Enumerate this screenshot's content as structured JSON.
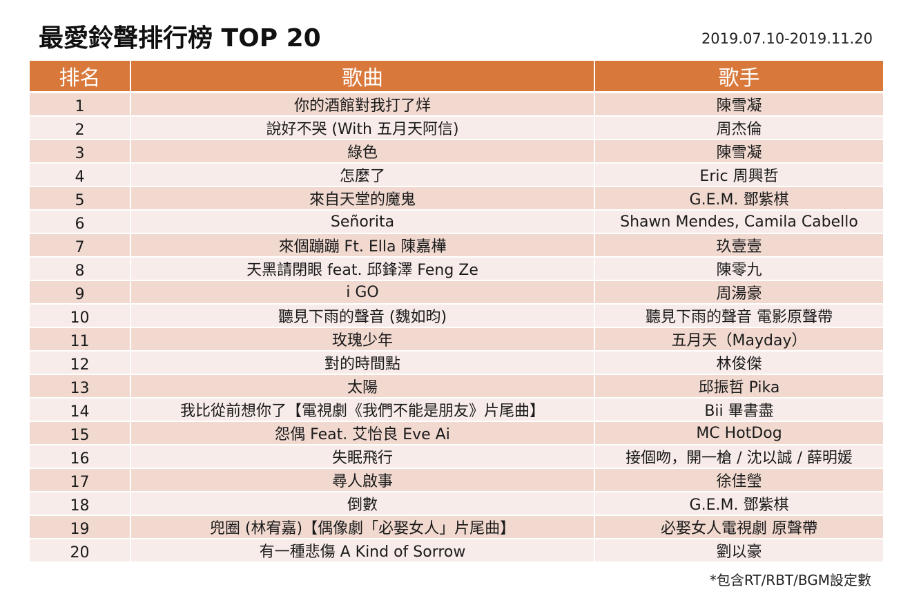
{
  "header": {
    "title": "最愛鈴聲排行榜 TOP 20",
    "date_range": "2019.07.10-2019.11.20"
  },
  "table": {
    "columns": [
      "排名",
      "歌曲",
      "歌手"
    ],
    "rows": [
      {
        "rank": "1",
        "song": "你的酒館對我打了烊",
        "artist": "陳雪凝"
      },
      {
        "rank": "2",
        "song": "說好不哭 (With 五月天阿信)",
        "artist": "周杰倫"
      },
      {
        "rank": "3",
        "song": "綠色",
        "artist": "陳雪凝"
      },
      {
        "rank": "4",
        "song": "怎麼了",
        "artist": "Eric 周興哲"
      },
      {
        "rank": "5",
        "song": "來自天堂的魔鬼",
        "artist": "G.E.M. 鄧紫棋"
      },
      {
        "rank": "6",
        "song": "Señorita",
        "artist": "Shawn Mendes, Camila Cabello"
      },
      {
        "rank": "7",
        "song": "來個蹦蹦 Ft. Ella 陳嘉樺",
        "artist": "玖壹壹"
      },
      {
        "rank": "8",
        "song": "天黑請閉眼 feat. 邱鋒澤 Feng Ze",
        "artist": "陳零九"
      },
      {
        "rank": "9",
        "song": "i GO",
        "artist": "周湯豪"
      },
      {
        "rank": "10",
        "song": "聽見下雨的聲音 (魏如昀)",
        "artist": "聽見下雨的聲音 電影原聲帶"
      },
      {
        "rank": "11",
        "song": "玫瑰少年",
        "artist": "五月天（Mayday）"
      },
      {
        "rank": "12",
        "song": "對的時間點",
        "artist": "林俊傑"
      },
      {
        "rank": "13",
        "song": "太陽",
        "artist": "邱振哲 Pika"
      },
      {
        "rank": "14",
        "song": "我比從前想你了【電視劇《我們不能是朋友》片尾曲】",
        "artist": "Bii 畢書盡"
      },
      {
        "rank": "15",
        "song": "怨偶 Feat. 艾怡良 Eve Ai",
        "artist": "MC HotDog"
      },
      {
        "rank": "16",
        "song": "失眠飛行",
        "artist": "接個吻，開一槍 / 沈以誠 / 薛明媛"
      },
      {
        "rank": "17",
        "song": "尋人啟事",
        "artist": "徐佳瑩"
      },
      {
        "rank": "18",
        "song": "倒數",
        "artist": "G.E.M. 鄧紫棋"
      },
      {
        "rank": "19",
        "song": "兜圈 (林宥嘉)【偶像劇「必娶女人」片尾曲】",
        "artist": "必娶女人電視劇 原聲帶"
      },
      {
        "rank": "20",
        "song": "有一種悲傷 A Kind of Sorrow",
        "artist": "劉以豪"
      }
    ]
  },
  "footnote": "*包含RT/RBT/BGM設定數",
  "colors": {
    "header_bg": "#d9783b",
    "row_odd": "#f1d9d0",
    "row_even": "#f8ecea"
  }
}
